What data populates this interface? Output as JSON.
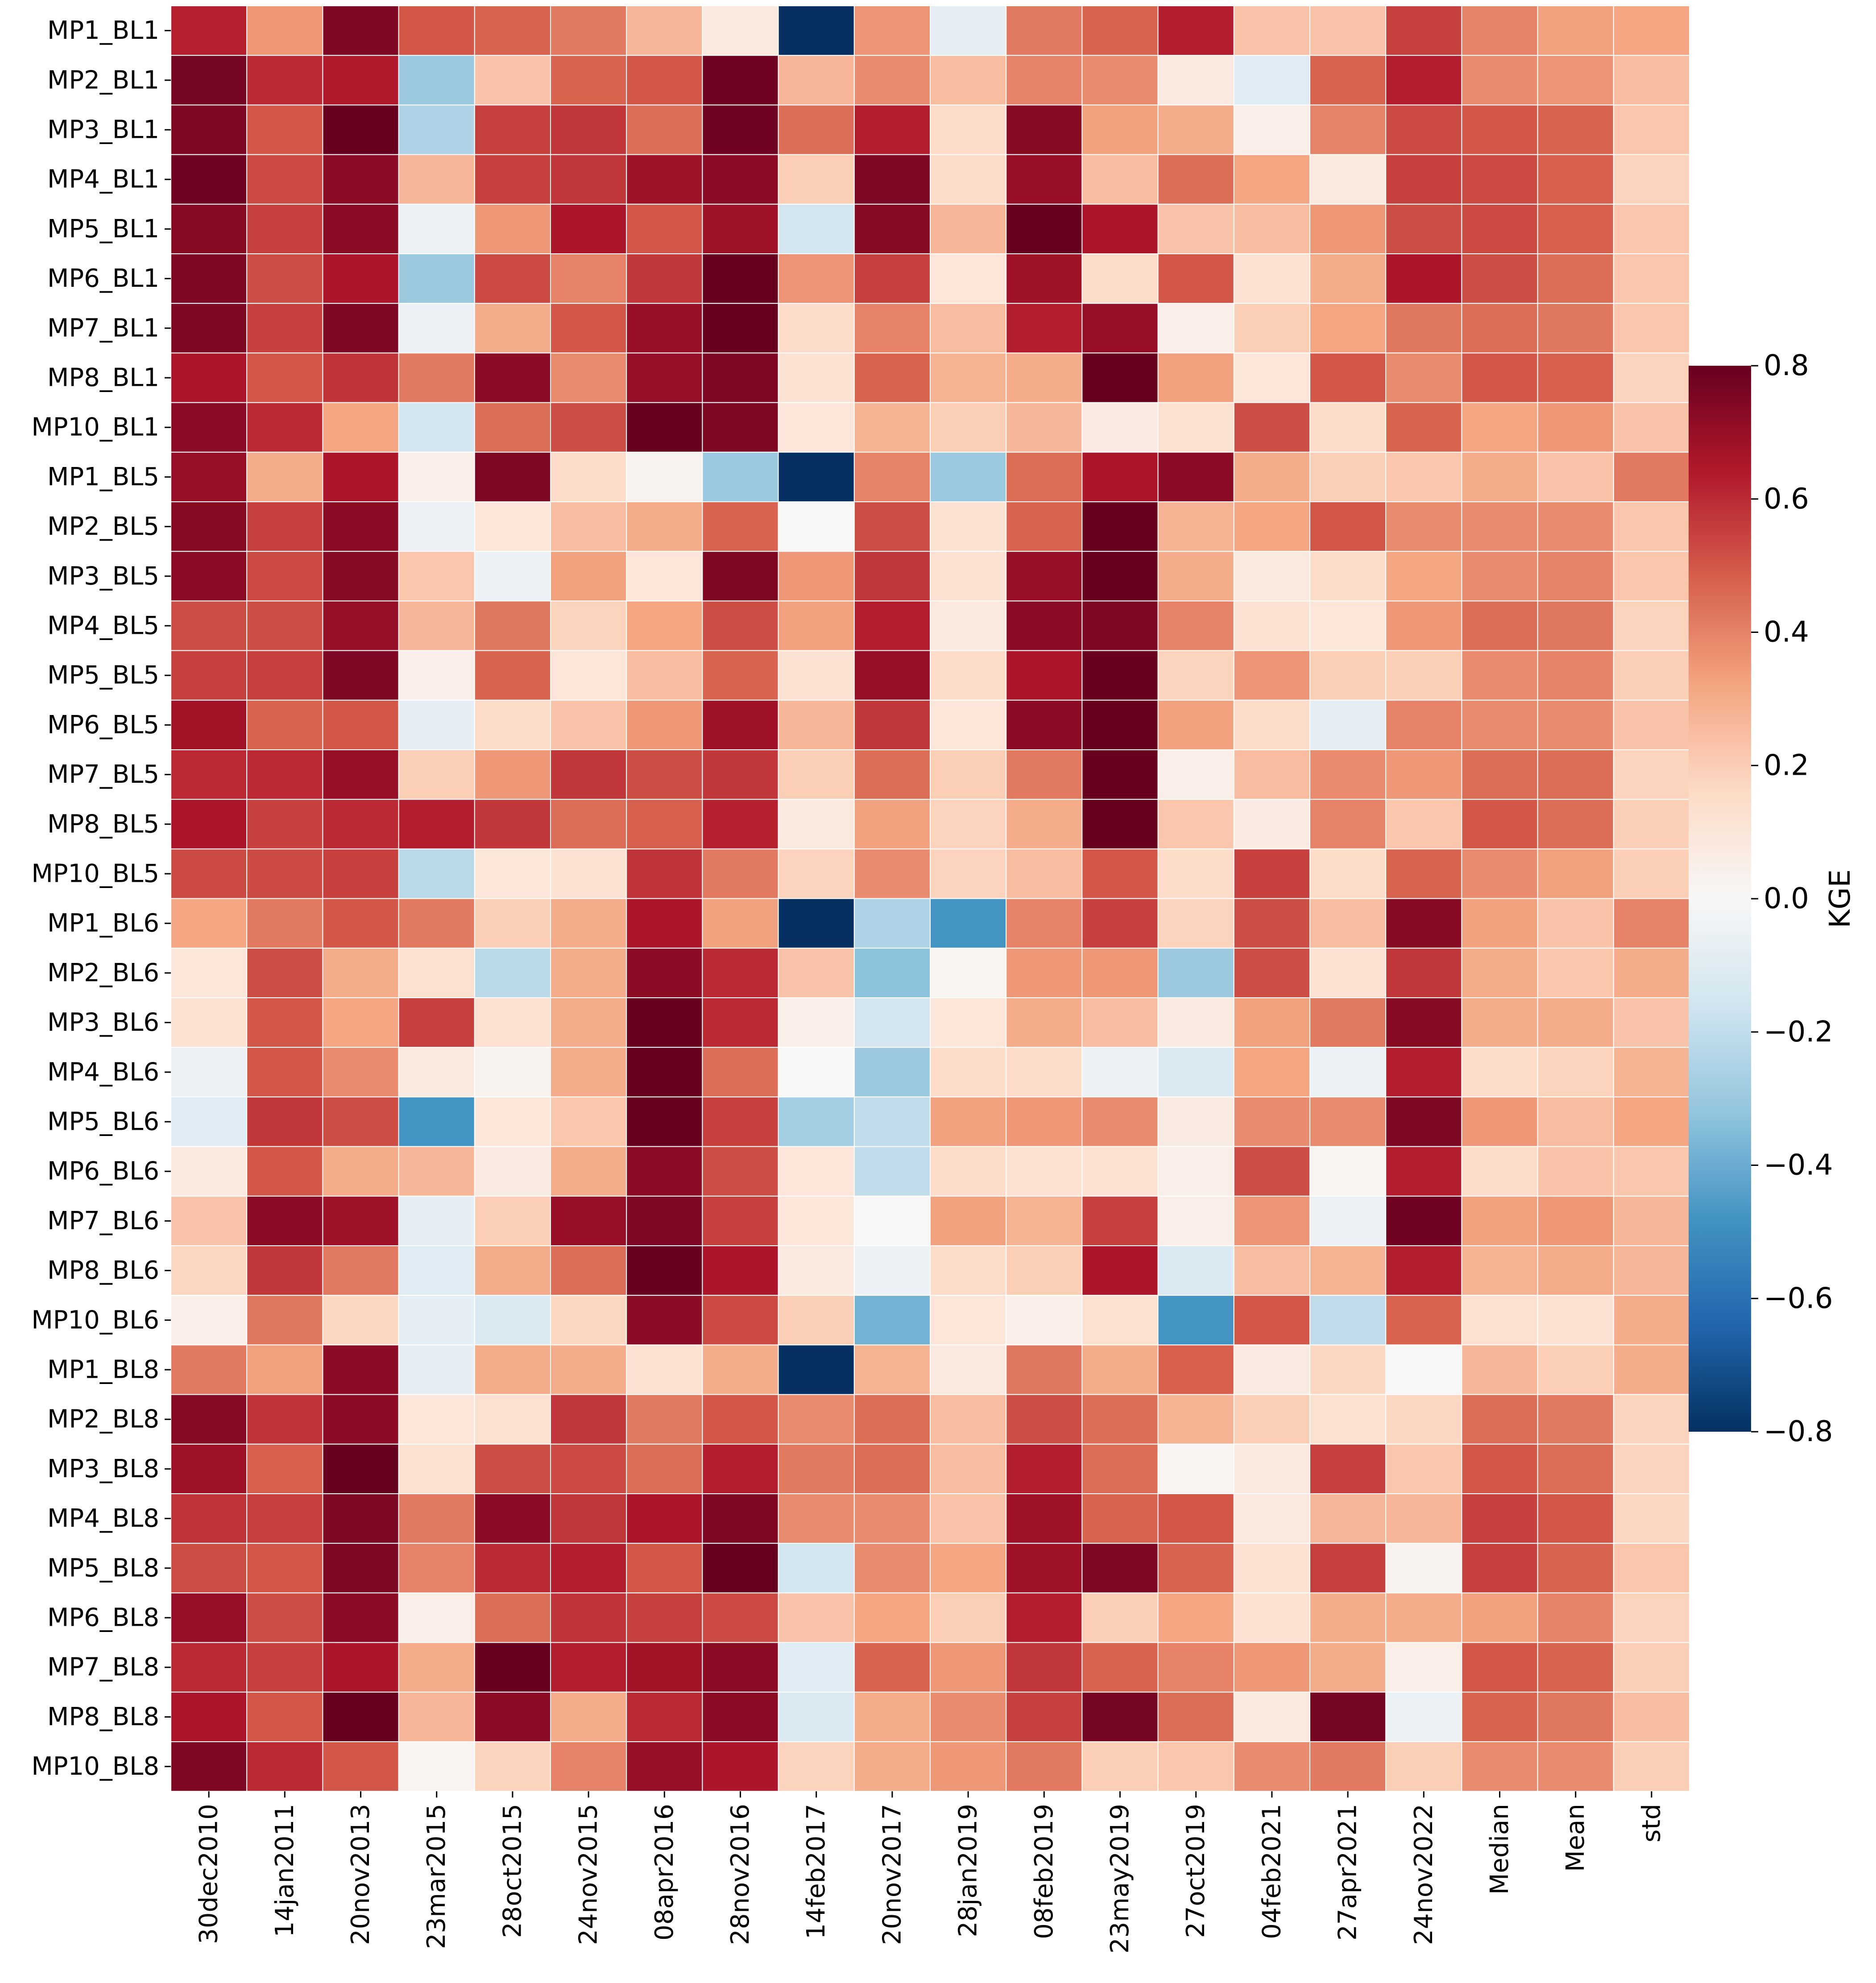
{
  "chart_data": {
    "type": "heatmap",
    "title": "",
    "xlabel": "",
    "ylabel": "",
    "rows": [
      "MP1_BL1",
      "MP2_BL1",
      "MP3_BL1",
      "MP4_BL1",
      "MP5_BL1",
      "MP6_BL1",
      "MP7_BL1",
      "MP8_BL1",
      "MP10_BL1",
      "MP1_BL5",
      "MP2_BL5",
      "MP3_BL5",
      "MP4_BL5",
      "MP5_BL5",
      "MP6_BL5",
      "MP7_BL5",
      "MP8_BL5",
      "MP10_BL5",
      "MP1_BL6",
      "MP2_BL6",
      "MP3_BL6",
      "MP4_BL6",
      "MP5_BL6",
      "MP6_BL6",
      "MP7_BL6",
      "MP8_BL6",
      "MP10_BL6",
      "MP1_BL8",
      "MP2_BL8",
      "MP3_BL8",
      "MP4_BL8",
      "MP5_BL8",
      "MP6_BL8",
      "MP7_BL8",
      "MP8_BL8",
      "MP10_BL8"
    ],
    "columns": [
      "30dec2010",
      "14jan2011",
      "20nov2013",
      "23mar2015",
      "28oct2015",
      "24nov2015",
      "08apr2016",
      "28nov2016",
      "14feb2017",
      "20nov2017",
      "28jan2019",
      "08feb2019",
      "23may2019",
      "27oct2019",
      "04feb2021",
      "27apr2021",
      "24nov2022",
      "Median",
      "Mean",
      "std"
    ],
    "values": [
      [
        0.62,
        0.35,
        0.75,
        0.5,
        0.47,
        0.42,
        0.27,
        0.08,
        -0.8,
        0.36,
        -0.08,
        0.42,
        0.47,
        0.63,
        0.23,
        0.23,
        0.55,
        0.4,
        0.33,
        0.32
      ],
      [
        0.77,
        0.6,
        0.64,
        -0.3,
        0.23,
        0.47,
        0.5,
        0.78,
        0.27,
        0.38,
        0.25,
        0.4,
        0.38,
        0.08,
        -0.1,
        0.47,
        0.63,
        0.38,
        0.36,
        0.25
      ],
      [
        0.75,
        0.5,
        0.8,
        -0.25,
        0.55,
        0.57,
        0.45,
        0.78,
        0.45,
        0.63,
        0.15,
        0.73,
        0.33,
        0.3,
        0.05,
        0.4,
        0.53,
        0.5,
        0.47,
        0.22
      ],
      [
        0.78,
        0.53,
        0.72,
        0.27,
        0.55,
        0.57,
        0.68,
        0.72,
        0.2,
        0.75,
        0.15,
        0.7,
        0.25,
        0.45,
        0.32,
        0.08,
        0.55,
        0.53,
        0.48,
        0.18
      ],
      [
        0.73,
        0.55,
        0.72,
        -0.05,
        0.35,
        0.65,
        0.5,
        0.68,
        -0.15,
        0.73,
        0.27,
        0.8,
        0.65,
        0.23,
        0.25,
        0.35,
        0.52,
        0.53,
        0.48,
        0.22
      ],
      [
        0.75,
        0.52,
        0.65,
        -0.3,
        0.53,
        0.4,
        0.57,
        0.8,
        0.36,
        0.55,
        0.1,
        0.68,
        0.15,
        0.5,
        0.12,
        0.3,
        0.65,
        0.52,
        0.45,
        0.22
      ],
      [
        0.75,
        0.55,
        0.75,
        -0.05,
        0.3,
        0.5,
        0.7,
        0.8,
        0.15,
        0.4,
        0.25,
        0.63,
        0.7,
        0.05,
        0.2,
        0.32,
        0.43,
        0.45,
        0.43,
        0.22
      ],
      [
        0.65,
        0.5,
        0.58,
        0.42,
        0.72,
        0.38,
        0.7,
        0.75,
        0.12,
        0.47,
        0.28,
        0.3,
        0.8,
        0.33,
        0.1,
        0.5,
        0.38,
        0.5,
        0.48,
        0.18
      ],
      [
        0.72,
        0.6,
        0.32,
        -0.15,
        0.45,
        0.52,
        0.8,
        0.75,
        0.1,
        0.28,
        0.2,
        0.27,
        0.07,
        0.13,
        0.52,
        0.15,
        0.47,
        0.32,
        0.35,
        0.23
      ],
      [
        0.7,
        0.3,
        0.65,
        0.05,
        0.75,
        0.15,
        0.03,
        -0.3,
        -0.8,
        0.4,
        -0.3,
        0.45,
        0.65,
        0.72,
        0.3,
        0.2,
        0.22,
        0.3,
        0.23,
        0.42
      ],
      [
        0.73,
        0.55,
        0.72,
        -0.05,
        0.1,
        0.25,
        0.3,
        0.47,
        0.0,
        0.52,
        0.12,
        0.47,
        0.8,
        0.28,
        0.32,
        0.5,
        0.38,
        0.38,
        0.38,
        0.22
      ],
      [
        0.72,
        0.53,
        0.73,
        0.22,
        -0.05,
        0.33,
        0.1,
        0.75,
        0.35,
        0.57,
        0.12,
        0.7,
        0.8,
        0.3,
        0.08,
        0.15,
        0.32,
        0.38,
        0.4,
        0.22
      ],
      [
        0.52,
        0.52,
        0.7,
        0.27,
        0.43,
        0.18,
        0.32,
        0.52,
        0.33,
        0.63,
        0.08,
        0.72,
        0.75,
        0.4,
        0.12,
        0.1,
        0.35,
        0.45,
        0.43,
        0.18
      ],
      [
        0.55,
        0.55,
        0.75,
        0.05,
        0.47,
        0.1,
        0.25,
        0.47,
        0.12,
        0.7,
        0.15,
        0.65,
        0.8,
        0.18,
        0.36,
        0.2,
        0.2,
        0.38,
        0.4,
        0.2
      ],
      [
        0.67,
        0.47,
        0.5,
        -0.08,
        0.15,
        0.23,
        0.35,
        0.68,
        0.27,
        0.57,
        0.1,
        0.72,
        0.8,
        0.33,
        0.15,
        -0.08,
        0.4,
        0.38,
        0.38,
        0.23
      ],
      [
        0.6,
        0.6,
        0.7,
        0.2,
        0.35,
        0.57,
        0.52,
        0.57,
        0.2,
        0.45,
        0.2,
        0.42,
        0.8,
        0.05,
        0.25,
        0.38,
        0.35,
        0.45,
        0.45,
        0.18
      ],
      [
        0.65,
        0.55,
        0.6,
        0.63,
        0.57,
        0.45,
        0.48,
        0.62,
        0.08,
        0.33,
        0.18,
        0.3,
        0.8,
        0.22,
        0.07,
        0.4,
        0.22,
        0.5,
        0.45,
        0.2
      ],
      [
        0.53,
        0.53,
        0.55,
        -0.22,
        0.1,
        0.12,
        0.58,
        0.42,
        0.18,
        0.38,
        0.18,
        0.25,
        0.5,
        0.15,
        0.55,
        0.15,
        0.47,
        0.38,
        0.33,
        0.2
      ],
      [
        0.32,
        0.42,
        0.5,
        0.42,
        0.2,
        0.3,
        0.65,
        0.33,
        -0.8,
        -0.25,
        -0.48,
        0.4,
        0.55,
        0.18,
        0.52,
        0.25,
        0.73,
        0.33,
        0.23,
        0.4
      ],
      [
        0.1,
        0.52,
        0.3,
        0.13,
        -0.22,
        0.3,
        0.72,
        0.6,
        0.23,
        -0.33,
        0.02,
        0.35,
        0.35,
        -0.3,
        0.52,
        0.12,
        0.57,
        0.3,
        0.22,
        0.3
      ],
      [
        0.12,
        0.5,
        0.32,
        0.55,
        0.13,
        0.3,
        0.8,
        0.6,
        0.05,
        -0.15,
        0.1,
        0.3,
        0.25,
        0.07,
        0.33,
        0.42,
        0.73,
        0.3,
        0.3,
        0.23
      ],
      [
        -0.05,
        0.5,
        0.38,
        0.08,
        0.03,
        0.3,
        0.8,
        0.45,
        0.0,
        -0.3,
        0.15,
        0.15,
        -0.05,
        -0.12,
        0.32,
        -0.05,
        0.63,
        0.15,
        0.18,
        0.28
      ],
      [
        -0.1,
        0.57,
        0.52,
        -0.48,
        0.1,
        0.22,
        0.8,
        0.55,
        -0.28,
        -0.2,
        0.33,
        0.35,
        0.38,
        0.07,
        0.38,
        0.38,
        0.75,
        0.35,
        0.25,
        0.32
      ],
      [
        0.08,
        0.5,
        0.3,
        0.27,
        0.07,
        0.3,
        0.72,
        0.52,
        0.1,
        -0.2,
        0.15,
        0.12,
        0.12,
        0.05,
        0.52,
        0.02,
        0.63,
        0.15,
        0.23,
        0.22
      ],
      [
        0.23,
        0.72,
        0.68,
        -0.08,
        0.2,
        0.7,
        0.75,
        0.55,
        0.1,
        0.0,
        0.33,
        0.28,
        0.55,
        0.05,
        0.36,
        -0.05,
        0.78,
        0.33,
        0.35,
        0.27
      ],
      [
        0.17,
        0.57,
        0.42,
        -0.1,
        0.3,
        0.45,
        0.8,
        0.65,
        0.08,
        -0.05,
        0.15,
        0.2,
        0.65,
        -0.12,
        0.25,
        0.28,
        0.63,
        0.28,
        0.3,
        0.27
      ],
      [
        0.05,
        0.43,
        0.17,
        -0.08,
        -0.12,
        0.17,
        0.72,
        0.53,
        0.2,
        -0.38,
        0.1,
        0.05,
        0.13,
        -0.48,
        0.5,
        -0.2,
        0.47,
        0.13,
        0.12,
        0.3
      ],
      [
        0.42,
        0.33,
        0.72,
        -0.08,
        0.3,
        0.3,
        0.12,
        0.3,
        -0.8,
        0.28,
        0.08,
        0.43,
        0.3,
        0.48,
        0.07,
        0.17,
        0.0,
        0.27,
        0.2,
        0.3
      ],
      [
        0.73,
        0.58,
        0.72,
        0.1,
        0.13,
        0.57,
        0.42,
        0.5,
        0.38,
        0.45,
        0.25,
        0.52,
        0.45,
        0.28,
        0.2,
        0.13,
        0.17,
        0.45,
        0.42,
        0.18
      ],
      [
        0.68,
        0.48,
        0.8,
        0.13,
        0.52,
        0.53,
        0.45,
        0.63,
        0.42,
        0.45,
        0.25,
        0.63,
        0.45,
        0.02,
        0.08,
        0.55,
        0.22,
        0.5,
        0.45,
        0.18
      ],
      [
        0.58,
        0.55,
        0.75,
        0.42,
        0.72,
        0.57,
        0.65,
        0.75,
        0.38,
        0.38,
        0.23,
        0.68,
        0.47,
        0.5,
        0.08,
        0.27,
        0.27,
        0.55,
        0.5,
        0.17
      ],
      [
        0.52,
        0.5,
        0.75,
        0.4,
        0.6,
        0.63,
        0.5,
        0.8,
        -0.15,
        0.38,
        0.32,
        0.68,
        0.75,
        0.47,
        0.12,
        0.55,
        0.03,
        0.55,
        0.47,
        0.22
      ],
      [
        0.7,
        0.52,
        0.72,
        0.05,
        0.45,
        0.58,
        0.55,
        0.53,
        0.23,
        0.32,
        0.2,
        0.63,
        0.2,
        0.32,
        0.12,
        0.3,
        0.3,
        0.33,
        0.4,
        0.18
      ],
      [
        0.6,
        0.55,
        0.65,
        0.3,
        0.8,
        0.63,
        0.67,
        0.72,
        -0.1,
        0.47,
        0.35,
        0.57,
        0.47,
        0.4,
        0.35,
        0.3,
        0.05,
        0.5,
        0.47,
        0.2
      ],
      [
        0.65,
        0.5,
        0.8,
        0.27,
        0.72,
        0.3,
        0.6,
        0.72,
        -0.12,
        0.3,
        0.38,
        0.55,
        0.77,
        0.45,
        0.08,
        0.77,
        -0.05,
        0.47,
        0.43,
        0.25
      ],
      [
        0.75,
        0.6,
        0.5,
        0.02,
        0.18,
        0.4,
        0.7,
        0.65,
        0.18,
        0.3,
        0.35,
        0.42,
        0.2,
        0.22,
        0.38,
        0.42,
        0.2,
        0.38,
        0.38,
        0.2
      ]
    ],
    "colorbar": {
      "label": "KGE",
      "vmin": -0.8,
      "vmax": 0.8,
      "ticks": [
        "0.8",
        "0.6",
        "0.4",
        "0.2",
        "0.0",
        "−0.2",
        "−0.4",
        "−0.6",
        "−0.8"
      ],
      "tick_values": [
        0.8,
        0.6,
        0.4,
        0.2,
        0.0,
        -0.2,
        -0.4,
        -0.6,
        -0.8
      ],
      "colormap": "RdBu_r",
      "stops": [
        "#053061",
        "#2166ac",
        "#4393c3",
        "#92c5de",
        "#d1e5f0",
        "#f7f7f7",
        "#fddbc7",
        "#f4a582",
        "#d6604d",
        "#b2182b",
        "#67001f"
      ]
    },
    "grid": false,
    "legend": "right"
  }
}
